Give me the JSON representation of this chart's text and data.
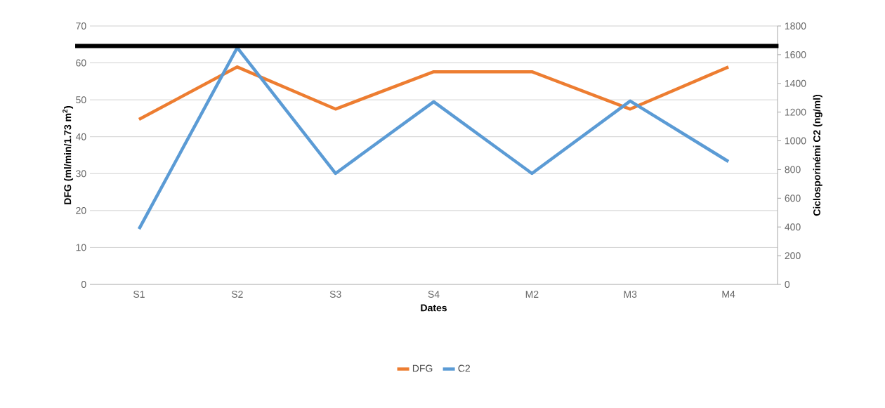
{
  "chart_data": {
    "type": "line",
    "xlabel": "Dates",
    "ylabel": "DFG (ml/min/1.73 m$^{2}$)",
    "y2label": "Ciclosporinémi C2 (ng/ml)",
    "categories": [
      "S1",
      "S2",
      "S3",
      "S4",
      "M2",
      "M3",
      "M4"
    ],
    "series": [
      {
        "name": "DFG",
        "color": "#ed7d31",
        "values": [
          44.7,
          58.9,
          47.5,
          57.6,
          57.6,
          47.5,
          58.9
        ]
      },
      {
        "name": "C2",
        "color": "#5b9bd5",
        "axis": "y2",
        "values": [
          386,
          1649,
          773,
          1272,
          773,
          1277,
          856
        ]
      }
    ],
    "ylim": [
      0,
      70
    ],
    "yticks": [
      0,
      10,
      20,
      30,
      40,
      50,
      60,
      70
    ],
    "y2lim": [
      0,
      1800
    ],
    "y2ticks": [
      0,
      200,
      400,
      600,
      800,
      1000,
      1200,
      1400,
      1600,
      1800
    ],
    "ref_lines": [
      {
        "axis": "y2",
        "value": 1660,
        "color": "#000000"
      }
    ],
    "grid": "y",
    "legend": "bottom",
    "marker": "none",
    "line_style": "solid"
  }
}
